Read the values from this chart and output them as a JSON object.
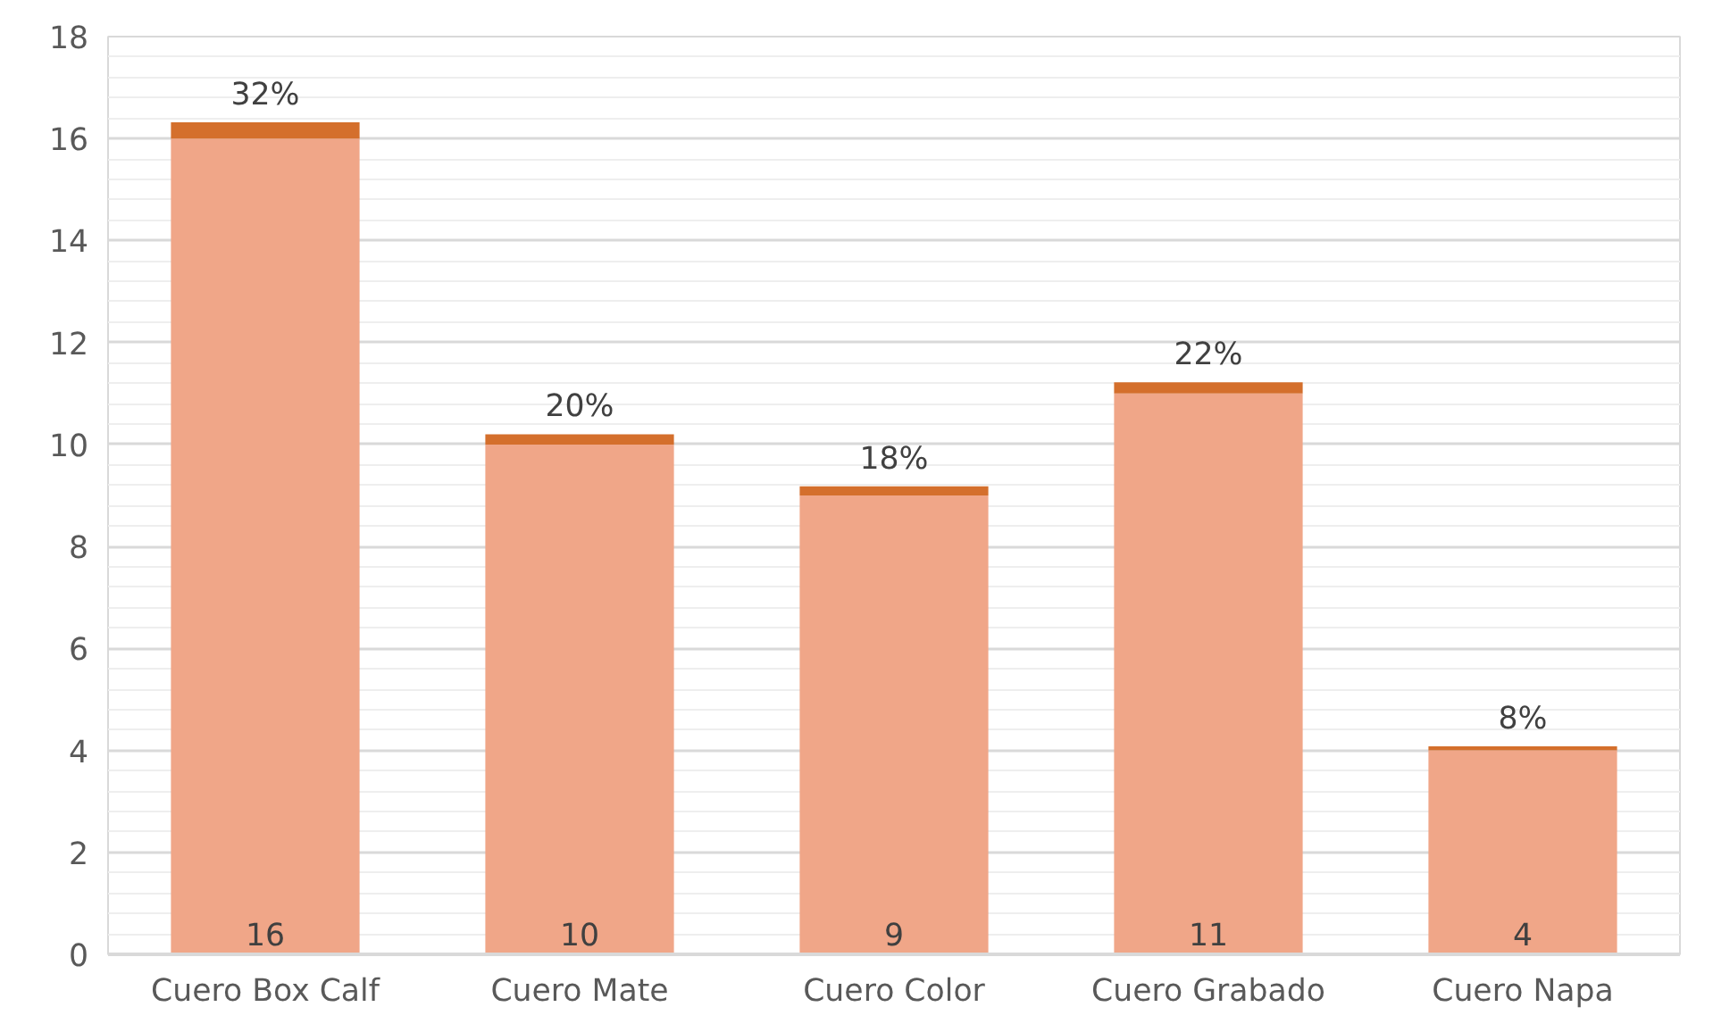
{
  "chart_data": {
    "type": "bar",
    "stacked": true,
    "categories": [
      "Cuero Box Calf",
      "Cuero Mate",
      "Cuero Color",
      "Cuero Grabado",
      "Cuero Napa"
    ],
    "series": [
      {
        "color": "#f0a688",
        "values": [
          16,
          10,
          9,
          11,
          4
        ],
        "value_labels": [
          "16",
          "10",
          "9",
          "11",
          "4"
        ]
      },
      {
        "color": "#d46f2c",
        "values": [
          0.32,
          0.2,
          0.18,
          0.22,
          0.08
        ],
        "value_labels": [
          "32%",
          "20%",
          "18%",
          "22%",
          "8%"
        ]
      }
    ],
    "ylim": [
      0,
      18
    ],
    "yticks": [
      0,
      2,
      4,
      6,
      8,
      10,
      12,
      14,
      16,
      18
    ],
    "grid": "y"
  }
}
